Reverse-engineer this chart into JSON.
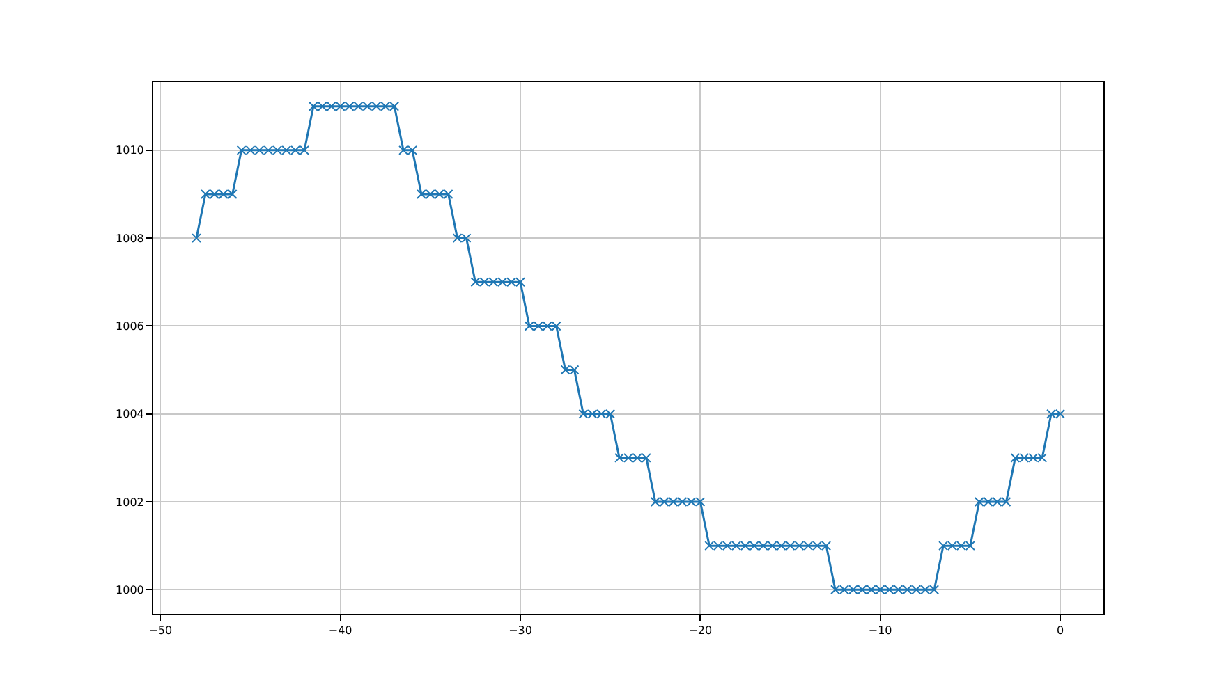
{
  "chart_data": {
    "type": "line",
    "marker": "cross",
    "line_style": "solid",
    "grid": true,
    "x": [
      -48,
      -47.5,
      -47,
      -46.5,
      -46,
      -45.5,
      -45,
      -44.5,
      -44,
      -43.5,
      -43,
      -42.5,
      -42,
      -41.5,
      -41,
      -40.5,
      -40,
      -39.5,
      -39,
      -38.5,
      -38,
      -37.5,
      -37,
      -36.5,
      -36,
      -35.5,
      -35,
      -34.5,
      -34,
      -33.5,
      -33,
      -32.5,
      -32,
      -31.5,
      -31,
      -30.5,
      -30,
      -29.5,
      -29,
      -28.5,
      -28,
      -27.5,
      -27,
      -26.5,
      -26,
      -25.5,
      -25,
      -24.5,
      -24,
      -23.5,
      -23,
      -22.5,
      -22,
      -21.5,
      -21,
      -20.5,
      -20,
      -19.5,
      -19,
      -18.5,
      -18,
      -17.5,
      -17,
      -16.5,
      -16,
      -15.5,
      -15,
      -14.5,
      -14,
      -13.5,
      -13,
      -12.5,
      -12,
      -11.5,
      -11,
      -10.5,
      -10,
      -9.5,
      -9,
      -8.5,
      -8,
      -7.5,
      -7,
      -6.5,
      -6,
      -5.5,
      -5,
      -4.5,
      -4,
      -3.5,
      -3,
      -2.5,
      -2,
      -1.5,
      -1,
      -0.5,
      0
    ],
    "series": [
      {
        "color": "#1f77b4",
        "values": [
          1008,
          1009,
          1009,
          1009,
          1009,
          1010,
          1010,
          1010,
          1010,
          1010,
          1010,
          1010,
          1010,
          1011,
          1011,
          1011,
          1011,
          1011,
          1011,
          1011,
          1011,
          1011,
          1011,
          1010,
          1010,
          1009,
          1009,
          1009,
          1009,
          1008,
          1008,
          1007,
          1007,
          1007,
          1007,
          1007,
          1007,
          1006,
          1006,
          1006,
          1006,
          1005,
          1005,
          1004,
          1004,
          1004,
          1004,
          1003,
          1003,
          1003,
          1003,
          1002,
          1002,
          1002,
          1002,
          1002,
          1002,
          1001,
          1001,
          1001,
          1001,
          1001,
          1001,
          1001,
          1001,
          1001,
          1001,
          1001,
          1001,
          1001,
          1001,
          1000,
          1000,
          1000,
          1000,
          1000,
          1000,
          1000,
          1000,
          1000,
          1000,
          1000,
          1000,
          1001,
          1001,
          1001,
          1001,
          1002,
          1002,
          1002,
          1002,
          1003,
          1003,
          1003,
          1003,
          1004,
          1004
        ]
      }
    ],
    "xlim": [
      -50.4,
      2.4
    ],
    "xticks": [
      -50,
      -40,
      -30,
      -20,
      -10,
      0
    ],
    "ylim": [
      999.45,
      1011.55
    ],
    "yticks": [
      1000,
      1002,
      1004,
      1006,
      1008,
      1010
    ]
  }
}
